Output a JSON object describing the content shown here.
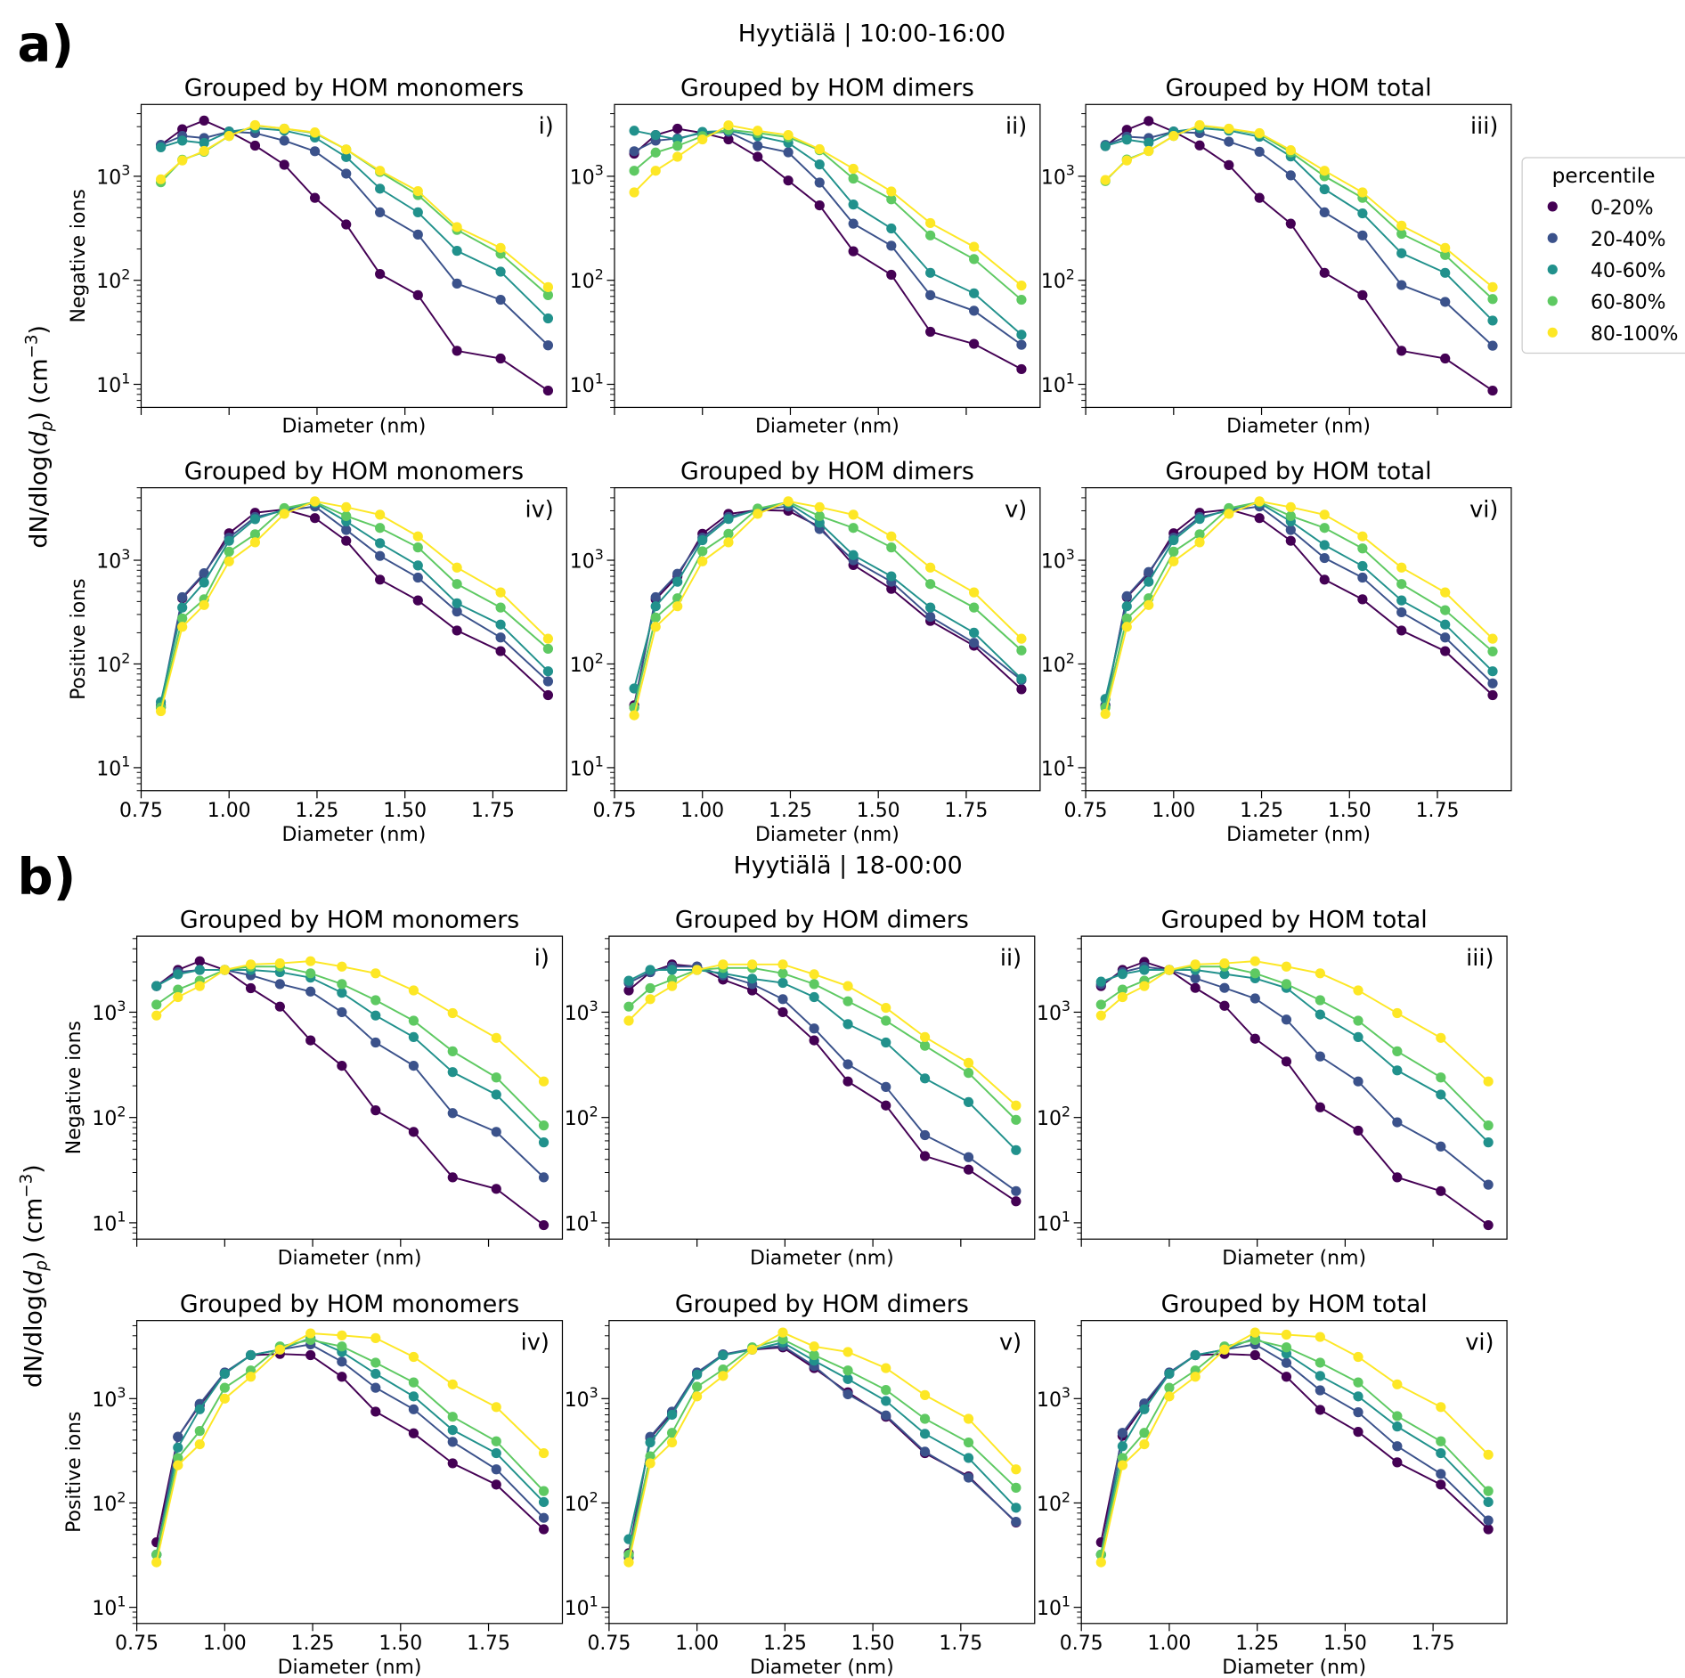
{
  "figure": {
    "group_a": {
      "label": "a)",
      "title": "Hyytiälä | 10:00-16:00"
    },
    "group_b": {
      "label": "b)",
      "title": "Hyytiälä | 18-00:00"
    },
    "shared_ylabel": {
      "pre": "dN/dlog(",
      "d": "d",
      "sub": "p",
      "mid": ") (cm",
      "sup": "−3",
      "post": ")"
    }
  },
  "legend": {
    "title": "percentile",
    "entries": [
      "0-20%",
      "20-40%",
      "40-60%",
      "60-80%",
      "80-100%"
    ],
    "colors": [
      "#440154",
      "#3b528b",
      "#21918c",
      "#5ec962",
      "#fde725"
    ]
  },
  "chart_data": {
    "type": "line",
    "xlabel": "Diameter (nm)",
    "xscale": "linear",
    "yscale": "log",
    "xlim": [
      0.75,
      1.96
    ],
    "xticks": [
      0.75,
      1.0,
      1.25,
      1.5,
      1.75
    ],
    "xtick_labels": [
      "0.75",
      "1.00",
      "1.25",
      "1.50",
      "1.75"
    ],
    "yticks": [
      10,
      100,
      1000
    ],
    "ytick_labels": [
      {
        "base": "10",
        "exp": "1"
      },
      {
        "base": "10",
        "exp": "2"
      },
      {
        "base": "10",
        "exp": "3"
      }
    ],
    "x": [
      0.806,
      0.867,
      0.929,
      1.0,
      1.074,
      1.157,
      1.244,
      1.333,
      1.429,
      1.537,
      1.648,
      1.772,
      1.907
    ],
    "legend_placement": "right of top-right panel",
    "panels": [
      {
        "group": "a",
        "row": 0,
        "col": 0,
        "title": "Grouped by HOM monomers",
        "tag": "i)",
        "ylabel": "Negative ions",
        "ylim": [
          6,
          4900
        ],
        "series": [
          [
            2000,
            2830,
            3430,
            2690,
            1970,
            1290,
            620,
            344,
            115,
            72,
            21,
            17.7,
            8.7
          ],
          [
            2000,
            2440,
            2330,
            2690,
            2600,
            2200,
            1740,
            1060,
            450,
            275,
            93,
            65,
            23.7
          ],
          [
            1900,
            2200,
            2090,
            2690,
            2900,
            2750,
            2360,
            1530,
            760,
            450,
            192,
            121,
            43
          ],
          [
            875,
            1440,
            1720,
            2440,
            3070,
            2870,
            2600,
            1810,
            1100,
            660,
            305,
            180,
            72
          ],
          [
            935,
            1420,
            1750,
            2440,
            3100,
            2870,
            2640,
            1810,
            1130,
            720,
            325,
            205,
            86
          ]
        ]
      },
      {
        "group": "a",
        "row": 0,
        "col": 1,
        "title": "Grouped by HOM dimers",
        "tag": "ii)",
        "ylabel": "",
        "ylim": [
          6,
          4900
        ],
        "series": [
          [
            1650,
            2490,
            2870,
            2610,
            2260,
            1540,
            910,
            525,
            190,
            113,
            32,
            24.5,
            14
          ],
          [
            1740,
            2200,
            2310,
            2610,
            2670,
            1960,
            1700,
            870,
            350,
            215,
            72,
            51,
            24
          ],
          [
            2740,
            2490,
            2260,
            2670,
            2740,
            2430,
            2100,
            1300,
            535,
            315,
            118,
            75,
            30
          ],
          [
            1130,
            1690,
            1960,
            2430,
            2800,
            2610,
            2370,
            1780,
            950,
            600,
            270,
            160,
            65
          ],
          [
            700,
            1130,
            1540,
            2260,
            3090,
            2740,
            2490,
            1820,
            1180,
            715,
            355,
            210,
            89
          ]
        ]
      },
      {
        "group": "a",
        "row": 0,
        "col": 2,
        "title": "Grouped by HOM total",
        "tag": "iii)",
        "ylabel": "",
        "ylim": [
          6,
          4900
        ],
        "series": [
          [
            1950,
            2800,
            3400,
            2690,
            1980,
            1280,
            620,
            350,
            118,
            72,
            21,
            17.7,
            8.7
          ],
          [
            2000,
            2400,
            2330,
            2690,
            2600,
            2150,
            1720,
            1020,
            450,
            270,
            90,
            62,
            23.5
          ],
          [
            1950,
            2250,
            2100,
            2690,
            2900,
            2750,
            2400,
            1550,
            750,
            440,
            182,
            118,
            41
          ],
          [
            900,
            1450,
            1750,
            2440,
            3050,
            2850,
            2550,
            1700,
            1000,
            620,
            280,
            175,
            66
          ],
          [
            920,
            1420,
            1750,
            2440,
            3100,
            2870,
            2600,
            1780,
            1130,
            700,
            335,
            205,
            86
          ]
        ]
      },
      {
        "group": "a",
        "row": 1,
        "col": 0,
        "title": "Grouped by HOM monomers",
        "tag": "iv)",
        "ylabel": "Positive ions",
        "ylim": [
          6,
          5000
        ],
        "series": [
          [
            38,
            430,
            730,
            1820,
            2870,
            3090,
            2550,
            1540,
            650,
            410,
            210,
            133,
            50
          ],
          [
            40,
            440,
            750,
            1650,
            2610,
            3010,
            3300,
            1960,
            1100,
            680,
            320,
            180,
            68
          ],
          [
            43,
            350,
            610,
            1540,
            2490,
            3090,
            3570,
            2370,
            1460,
            890,
            385,
            240,
            85
          ],
          [
            38,
            275,
            420,
            1210,
            1780,
            3180,
            3650,
            2670,
            2050,
            1330,
            590,
            350,
            140
          ],
          [
            35,
            228,
            370,
            975,
            1490,
            2800,
            3700,
            3250,
            2750,
            1700,
            850,
            490,
            175
          ]
        ]
      },
      {
        "group": "a",
        "row": 1,
        "col": 1,
        "title": "Grouped by HOM dimers",
        "tag": "v)",
        "ylabel": "",
        "ylim": [
          6,
          5000
        ],
        "series": [
          [
            40,
            420,
            700,
            1800,
            2800,
            3050,
            3000,
            2100,
            900,
            530,
            260,
            150,
            57
          ],
          [
            38,
            440,
            740,
            1650,
            2620,
            3050,
            3300,
            2000,
            1000,
            620,
            285,
            160,
            70
          ],
          [
            58,
            360,
            620,
            1560,
            2500,
            3100,
            3550,
            2300,
            1120,
            700,
            350,
            200,
            72
          ],
          [
            38,
            280,
            430,
            1220,
            1800,
            3150,
            3650,
            2670,
            2050,
            1330,
            590,
            350,
            135
          ],
          [
            32,
            228,
            360,
            975,
            1490,
            2800,
            3700,
            3250,
            2750,
            1700,
            850,
            490,
            175
          ]
        ]
      },
      {
        "group": "a",
        "row": 1,
        "col": 2,
        "title": "Grouped by HOM total",
        "tag": "vi)",
        "ylabel": "",
        "ylim": [
          6,
          5000
        ],
        "series": [
          [
            40,
            440,
            740,
            1820,
            2870,
            3090,
            2550,
            1540,
            650,
            420,
            210,
            133,
            50
          ],
          [
            40,
            450,
            770,
            1650,
            2610,
            3010,
            3300,
            1960,
            1050,
            680,
            315,
            180,
            65
          ],
          [
            46,
            360,
            620,
            1560,
            2500,
            3100,
            3570,
            2370,
            1400,
            880,
            410,
            240,
            85
          ],
          [
            38,
            275,
            430,
            1210,
            1780,
            3180,
            3650,
            2670,
            2050,
            1300,
            590,
            330,
            132
          ],
          [
            33,
            228,
            370,
            975,
            1490,
            2800,
            3700,
            3250,
            2750,
            1700,
            850,
            490,
            175
          ]
        ]
      },
      {
        "group": "b",
        "row": 0,
        "col": 0,
        "title": "Grouped by HOM monomers",
        "tag": "i)",
        "ylabel": "Negative ions",
        "ylim": [
          7,
          5270
        ],
        "series": [
          [
            1770,
            2520,
            3050,
            2520,
            1690,
            1130,
            540,
            310,
            117,
            73,
            27,
            21,
            9.5
          ],
          [
            1770,
            2400,
            2520,
            2520,
            2240,
            1850,
            1570,
            1000,
            515,
            310,
            110,
            73,
            27
          ],
          [
            1770,
            2290,
            2520,
            2520,
            2520,
            2400,
            2130,
            1530,
            930,
            580,
            270,
            165,
            58
          ],
          [
            1180,
            1640,
            1990,
            2520,
            2710,
            2710,
            2340,
            1850,
            1300,
            830,
            425,
            240,
            84
          ],
          [
            930,
            1390,
            1770,
            2520,
            2840,
            2910,
            3050,
            2710,
            2340,
            1610,
            980,
            570,
            220
          ]
        ]
      },
      {
        "group": "b",
        "row": 0,
        "col": 1,
        "title": "Grouped by HOM dimers",
        "tag": "ii)",
        "ylabel": "",
        "ylim": [
          7,
          5270
        ],
        "series": [
          [
            1610,
            2400,
            2840,
            2710,
            2040,
            1610,
            1000,
            540,
            220,
            130,
            43,
            32,
            16
          ],
          [
            1900,
            2400,
            2710,
            2710,
            2240,
            1850,
            1330,
            700,
            320,
            195,
            68,
            42,
            20
          ],
          [
            1990,
            2520,
            2520,
            2520,
            2340,
            2080,
            1900,
            1390,
            770,
            515,
            235,
            140,
            49
          ],
          [
            1130,
            1690,
            2040,
            2520,
            2630,
            2630,
            2340,
            1850,
            1270,
            830,
            480,
            265,
            95
          ],
          [
            830,
            1330,
            1770,
            2520,
            2840,
            2840,
            2840,
            2290,
            1770,
            1100,
            580,
            330,
            130
          ]
        ]
      },
      {
        "group": "b",
        "row": 0,
        "col": 2,
        "title": "Grouped by HOM total",
        "tag": "iii)",
        "ylabel": "",
        "ylim": [
          7,
          5270
        ],
        "series": [
          [
            1770,
            2520,
            3000,
            2520,
            1700,
            1150,
            560,
            340,
            125,
            75,
            27,
            20,
            9.5
          ],
          [
            1850,
            2400,
            2700,
            2520,
            2100,
            1700,
            1350,
            850,
            380,
            220,
            90,
            53,
            23
          ],
          [
            1950,
            2300,
            2520,
            2520,
            2520,
            2300,
            2100,
            1700,
            950,
            580,
            280,
            165,
            58
          ],
          [
            1180,
            1640,
            1990,
            2520,
            2710,
            2710,
            2340,
            1850,
            1300,
            830,
            425,
            240,
            84
          ],
          [
            930,
            1390,
            1770,
            2520,
            2840,
            2910,
            3050,
            2710,
            2340,
            1610,
            980,
            570,
            220
          ]
        ]
      },
      {
        "group": "b",
        "row": 1,
        "col": 0,
        "title": "Grouped by HOM monomers",
        "tag": "iv)",
        "ylabel": "Positive ions",
        "ylim": [
          7,
          5600
        ],
        "series": [
          [
            42,
            430,
            865,
            1730,
            2610,
            2680,
            2610,
            1620,
            750,
            465,
            240,
            150,
            56
          ],
          [
            32,
            430,
            890,
            1780,
            2610,
            2950,
            3310,
            2260,
            1270,
            790,
            385,
            210,
            72
          ],
          [
            32,
            340,
            790,
            1730,
            2610,
            2950,
            3800,
            2800,
            1730,
            1050,
            500,
            300,
            102
          ],
          [
            32,
            270,
            490,
            1270,
            1860,
            3160,
            3650,
            3160,
            2210,
            1430,
            670,
            390,
            130
          ],
          [
            27,
            230,
            365,
            1000,
            1620,
            2950,
            4220,
            4030,
            3800,
            2510,
            1370,
            830,
            300
          ]
        ]
      },
      {
        "group": "b",
        "row": 1,
        "col": 1,
        "title": "Grouped by HOM dimers",
        "tag": "v)",
        "ylabel": "",
        "ylim": [
          7,
          5600
        ],
        "series": [
          [
            33,
            420,
            730,
            1750,
            2650,
            2950,
            3100,
            1960,
            1150,
            670,
            300,
            180,
            65
          ],
          [
            30,
            430,
            750,
            1780,
            2650,
            3000,
            3200,
            2050,
            1100,
            690,
            310,
            175,
            66
          ],
          [
            45,
            380,
            700,
            1700,
            2600,
            2950,
            3450,
            2310,
            1540,
            950,
            460,
            270,
            90
          ],
          [
            32,
            280,
            470,
            1300,
            1900,
            3100,
            3700,
            2610,
            1860,
            1210,
            640,
            380,
            140
          ],
          [
            27,
            240,
            380,
            1050,
            1650,
            2950,
            4300,
            3160,
            2800,
            1960,
            1080,
            640,
            210
          ]
        ]
      },
      {
        "group": "b",
        "row": 1,
        "col": 2,
        "title": "Grouped by HOM total",
        "tag": "vi)",
        "ylabel": "",
        "ylim": [
          7,
          5600
        ],
        "series": [
          [
            42,
            440,
            865,
            1730,
            2610,
            2680,
            2610,
            1620,
            780,
            480,
            245,
            150,
            56
          ],
          [
            32,
            470,
            900,
            1780,
            2610,
            2950,
            3310,
            2200,
            1200,
            740,
            350,
            190,
            68
          ],
          [
            32,
            350,
            790,
            1730,
            2610,
            2950,
            3800,
            2700,
            1650,
            1050,
            540,
            300,
            102
          ],
          [
            32,
            270,
            470,
            1270,
            1860,
            3160,
            3650,
            3100,
            2210,
            1430,
            680,
            390,
            130
          ],
          [
            27,
            230,
            365,
            1050,
            1620,
            2950,
            4300,
            4100,
            3900,
            2510,
            1370,
            830,
            290
          ]
        ]
      }
    ]
  }
}
